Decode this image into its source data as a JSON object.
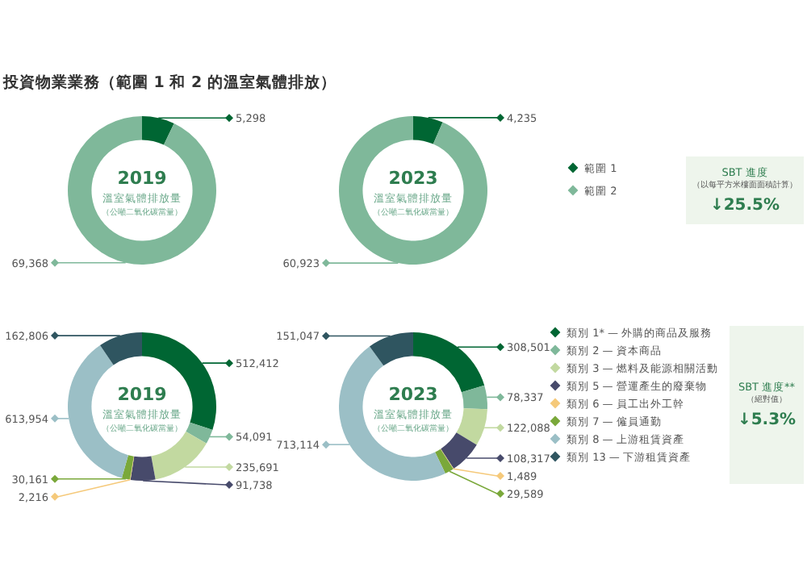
{
  "chart_data": [
    {
      "type": "other",
      "title": "投資物業業務（範圍 1 和 2 的溫室氣體排放）"
    },
    {
      "type": "donut",
      "title": "2019",
      "annotations": [
        "溫室氣體排放量",
        "（公噸二氧化碳當量）"
      ],
      "categories": [
        null,
        null
      ],
      "values": [
        5298,
        69368
      ],
      "value_labels": [
        "5,298",
        "69,368"
      ],
      "colors": [
        "#006633",
        "#7fb89a"
      ],
      "legend": false
    },
    {
      "type": "donut",
      "title": "2023",
      "annotations": [
        "溫室氣體排放量",
        "（公噸二氧化碳當量）"
      ],
      "categories": [
        "範圍 1",
        "範圍 2"
      ],
      "values": [
        4235,
        60923
      ],
      "value_labels": [
        "4,235",
        "60,923"
      ],
      "colors": [
        "#006633",
        "#7fb89a"
      ],
      "legend": "right"
    },
    {
      "type": "other",
      "title": "SBT 進度",
      "subtitle": "（以每平方米樓面面積計算）",
      "annotations": [
        "↓25.5%"
      ]
    },
    {
      "type": "donut",
      "title": "2019",
      "annotations": [
        "溫室氣體排放量",
        "（公噸二氧化碳當量）"
      ],
      "categories": [
        null,
        null,
        null,
        null,
        null,
        null,
        null,
        null
      ],
      "values": [
        512412,
        54091,
        235691,
        91738,
        2216,
        30161,
        613954,
        162806
      ],
      "value_labels": [
        "512,412",
        "54,091",
        "235,691",
        "91,738",
        "2,216",
        "30,161",
        "613,954",
        "162,806"
      ],
      "colors": [
        "#006633",
        "#7fb89a",
        "#c2d9a0",
        "#474a6b",
        "#f5c97a",
        "#7aa83a",
        "#9bbfc6",
        "#2f5560"
      ],
      "legend": false
    },
    {
      "type": "donut",
      "title": "2023",
      "annotations": [
        "溫室氣體排放量",
        "（公噸二氧化碳當量）"
      ],
      "categories": [
        "類別 1* — 外購的商品及服務",
        "類別 2 — 資本商品",
        "類別 3 — 燃料及能源相關活動",
        "類別 5 — 營運產生的廢棄物",
        "類別 6 — 員工出外工幹",
        "類別 7 — 僱員通勤",
        "類別 8 — 上游租賃資產",
        "類別 13 — 下游租賃資產"
      ],
      "values": [
        308501,
        78337,
        122088,
        108317,
        1489,
        29589,
        713114,
        151047
      ],
      "value_labels": [
        "308,501",
        "78,337",
        "122,088",
        "108,317",
        "1,489",
        "29,589",
        "713,114",
        "151,047"
      ],
      "colors": [
        "#006633",
        "#7fb89a",
        "#c2d9a0",
        "#474a6b",
        "#f5c97a",
        "#7aa83a",
        "#9bbfc6",
        "#2f5560"
      ],
      "legend": "right"
    },
    {
      "type": "other",
      "title": "SBT 進度**",
      "subtitle": "（絕對值）",
      "annotations": [
        "↓5.3%"
      ]
    }
  ]
}
